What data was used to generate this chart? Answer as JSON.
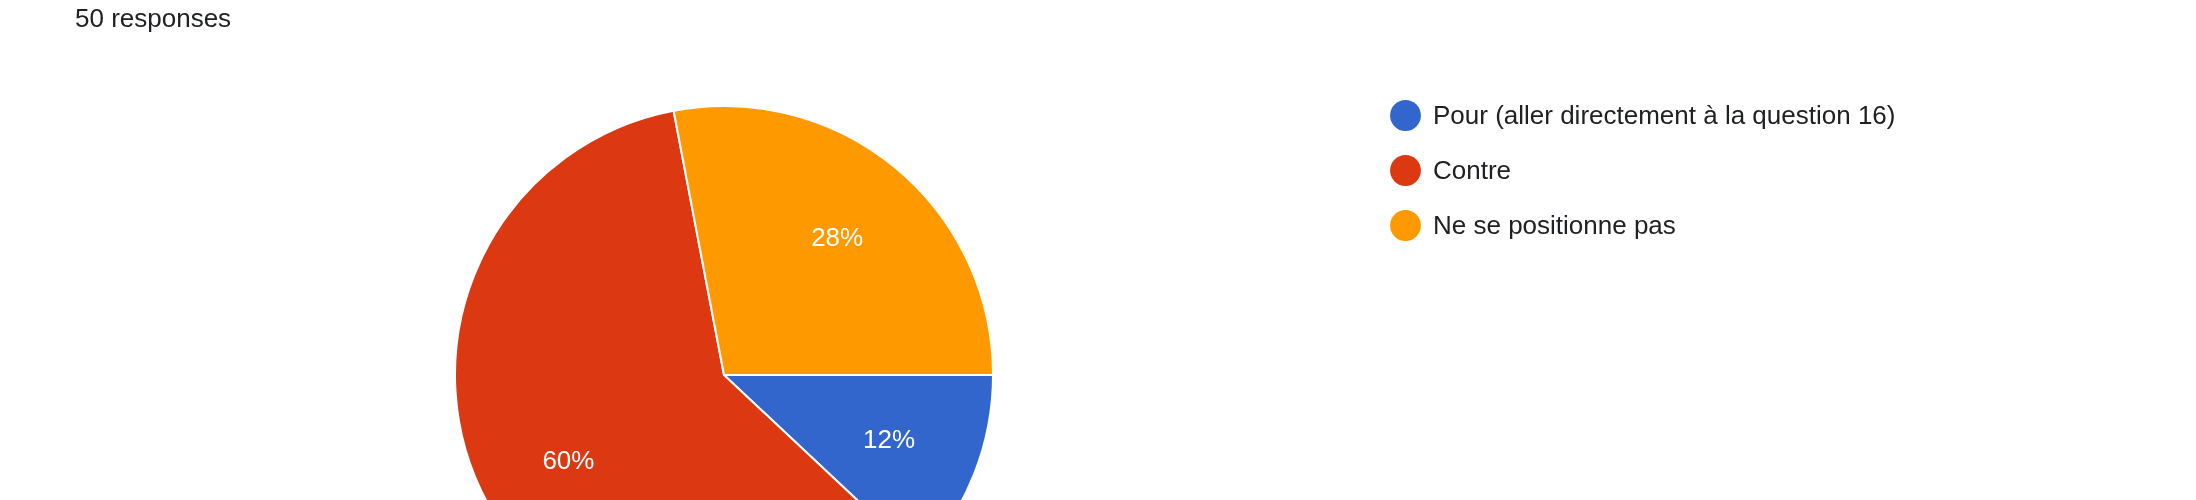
{
  "chart_data": {
    "type": "pie",
    "subtitle": "50 responses",
    "categories": [
      "Pour (aller directement à la question 16)",
      "Contre",
      "Ne se positionne pas"
    ],
    "values": [
      12,
      60,
      28
    ],
    "colors": [
      "#3366cc",
      "#dc3912",
      "#ff9900"
    ],
    "value_labels": [
      "12%",
      "60%",
      "28%"
    ],
    "legend": "right"
  }
}
